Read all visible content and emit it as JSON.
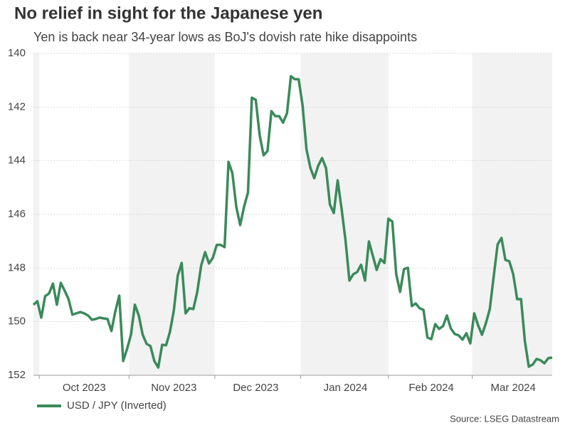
{
  "chart_data": {
    "type": "line",
    "title": "No relief in sight for the Japanese yen",
    "subtitle": "Yen is back near 34-year lows as BoJ's dovish rate hike disappoints",
    "source": "Source: LSEG Datastream",
    "categories": [
      null,
      null,
      null,
      null,
      null,
      null,
      null,
      null,
      null,
      null,
      null,
      null,
      null,
      "Oct 2023",
      null,
      null,
      null,
      null,
      null,
      null,
      null,
      null,
      null,
      null,
      null,
      null,
      null,
      null,
      null,
      null,
      null,
      null,
      null,
      null,
      null,
      null,
      "Nov 2023",
      null,
      null,
      null,
      null,
      null,
      null,
      null,
      null,
      null,
      null,
      null,
      null,
      null,
      null,
      null,
      null,
      null,
      null,
      null,
      null,
      "Dec 2023",
      null,
      null,
      null,
      null,
      null,
      null,
      null,
      null,
      null,
      null,
      null,
      null,
      null,
      null,
      null,
      null,
      null,
      null,
      null,
      null,
      null,
      null,
      "Jan 2024",
      null,
      null,
      null,
      null,
      null,
      null,
      null,
      null,
      null,
      null,
      null,
      null,
      null,
      null,
      null,
      null,
      null,
      null,
      null,
      null,
      null,
      "Feb 2024",
      null,
      null,
      null,
      null,
      null,
      null,
      null,
      null,
      null,
      null,
      null,
      null,
      null,
      null,
      null,
      null,
      null,
      null,
      null,
      null,
      "Mar 2024",
      null,
      null,
      null,
      null,
      null,
      null,
      null,
      null,
      null,
      null
    ],
    "series": [
      {
        "name": "USD / JPY (Inverted)",
        "color": "#3a8a5a",
        "values": [
          149.37,
          149.24,
          149.85,
          149.05,
          148.95,
          148.58,
          149.37,
          148.55,
          148.84,
          149.16,
          149.74,
          149.69,
          149.64,
          149.69,
          149.77,
          149.93,
          149.9,
          149.85,
          149.88,
          149.9,
          150.35,
          149.61,
          149.03,
          151.47,
          151.02,
          150.49,
          149.37,
          149.77,
          150.49,
          150.83,
          150.91,
          151.47,
          151.71,
          150.86,
          150.88,
          150.38,
          149.58,
          148.28,
          147.81,
          149.69,
          149.5,
          149.53,
          148.89,
          147.91,
          147.41,
          147.83,
          147.62,
          147.14,
          147.14,
          147.22,
          144.04,
          144.46,
          145.71,
          146.4,
          145.71,
          145.18,
          141.65,
          141.73,
          143.05,
          143.8,
          143.64,
          142.15,
          142.34,
          142.34,
          142.58,
          142.23,
          140.85,
          140.96,
          140.96,
          141.94,
          143.58,
          144.27,
          144.65,
          144.19,
          143.9,
          144.27,
          145.63,
          145.95,
          144.73,
          145.79,
          146.96,
          148.47,
          148.23,
          148.15,
          147.88,
          148.47,
          147.01,
          147.54,
          148.07,
          147.67,
          147.81,
          146.16,
          146.27,
          148.23,
          148.89,
          148.04,
          147.99,
          149.42,
          149.32,
          149.5,
          149.56,
          150.59,
          150.65,
          150.09,
          150.27,
          150.17,
          149.77,
          150.25,
          150.46,
          150.51,
          150.67,
          150.43,
          150.81,
          149.69,
          150.14,
          150.49,
          150.06,
          149.53,
          148.31,
          147.12,
          146.88,
          147.7,
          147.75,
          148.23,
          149.16,
          149.16,
          150.73,
          151.68,
          151.6,
          151.39,
          151.44,
          151.55,
          151.36,
          151.34
        ]
      }
    ],
    "ylim": [
      140,
      152
    ],
    "yticks": [
      140,
      142,
      144,
      146,
      148,
      150,
      152
    ],
    "inverted": true,
    "grid": true,
    "legend": "bottom-left"
  }
}
